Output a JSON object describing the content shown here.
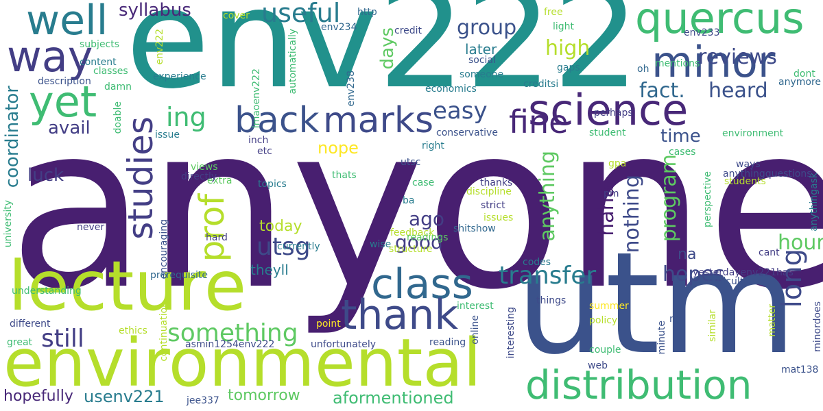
{
  "words": [
    {
      "text": "anyone",
      "color": "#481f70",
      "vertical": false
    },
    {
      "text": "env222",
      "color": "#21918c",
      "vertical": false
    },
    {
      "text": "utm",
      "color": "#3b528b",
      "vertical": false
    },
    {
      "text": "lecture",
      "color": "#b5de2b",
      "vertical": false
    },
    {
      "text": "environmental",
      "color": "#b5de2b",
      "vertical": false
    },
    {
      "text": "quercus",
      "color": "#3fbc73",
      "vertical": false
    },
    {
      "text": "minor",
      "color": "#3b528b",
      "vertical": false
    },
    {
      "text": "science",
      "color": "#482878",
      "vertical": false
    },
    {
      "text": "well",
      "color": "#287c8e",
      "vertical": false
    },
    {
      "text": "way",
      "color": "#433e85",
      "vertical": false
    },
    {
      "text": "yet",
      "color": "#3fbc73",
      "vertical": false
    },
    {
      "text": "back",
      "color": "#3b528b",
      "vertical": false
    },
    {
      "text": "marks",
      "color": "#3e4a89",
      "vertical": false
    },
    {
      "text": "class",
      "color": "#31688e",
      "vertical": false
    },
    {
      "text": "thank",
      "color": "#3e4a89",
      "vertical": false
    },
    {
      "text": "distribution",
      "color": "#3fbc73",
      "vertical": false
    },
    {
      "text": "fine",
      "color": "#482878",
      "vertical": false
    },
    {
      "text": "studies",
      "color": "#433e85",
      "vertical": true
    },
    {
      "text": "prof",
      "color": "#b5de2b",
      "vertical": true
    },
    {
      "text": "useful",
      "color": "#287c8e",
      "vertical": false
    },
    {
      "text": "syllabus",
      "color": "#482878",
      "vertical": false
    },
    {
      "text": "reviews",
      "color": "#3e4a89",
      "vertical": false
    },
    {
      "text": "group",
      "color": "#3b528b",
      "vertical": false
    },
    {
      "text": "high",
      "color": "#b5de2b",
      "vertical": false
    },
    {
      "text": "fact.",
      "color": "#31688e",
      "vertical": false
    },
    {
      "text": "heard",
      "color": "#3b528b",
      "vertical": false
    },
    {
      "text": "easy",
      "color": "#3b528b",
      "vertical": false
    },
    {
      "text": "ing",
      "color": "#3fbc73",
      "vertical": false
    },
    {
      "text": "transfer",
      "color": "#287c8e",
      "vertical": false
    },
    {
      "text": "utsg",
      "color": "#3e4a89",
      "vertical": false
    },
    {
      "text": "something",
      "color": "#5ec962",
      "vertical": false
    },
    {
      "text": "still",
      "color": "#433e85",
      "vertical": false
    },
    {
      "text": "long",
      "color": "#3e4a89",
      "vertical": true
    },
    {
      "text": "hopes",
      "color": "#3e4a89",
      "vertical": false
    },
    {
      "text": "hour",
      "color": "#5ec962",
      "vertical": false
    },
    {
      "text": "anything",
      "color": "#5ec962",
      "vertical": true
    },
    {
      "text": "haha",
      "color": "#481f70",
      "vertical": true
    },
    {
      "text": "nothing",
      "color": "#3e4a89",
      "vertical": true
    },
    {
      "text": "program",
      "color": "#5ec962",
      "vertical": true
    },
    {
      "text": "coordinator",
      "color": "#287c8e",
      "vertical": true
    },
    {
      "text": "avail",
      "color": "#433e85",
      "vertical": false
    },
    {
      "text": "luck",
      "color": "#433e85",
      "vertical": false
    },
    {
      "text": "time",
      "color": "#3b528b",
      "vertical": false
    },
    {
      "text": "good",
      "color": "#433e85",
      "vertical": false
    },
    {
      "text": "ago",
      "color": "#433e85",
      "vertical": false
    },
    {
      "text": "today",
      "color": "#b5de2b",
      "vertical": false
    },
    {
      "text": "nope",
      "color": "#fde725",
      "vertical": false
    },
    {
      "text": "days",
      "color": "#5ec962",
      "vertical": true
    },
    {
      "text": "later",
      "color": "#287c8e",
      "vertical": false
    },
    {
      "text": "tomorrow",
      "color": "#5ec962",
      "vertical": false
    },
    {
      "text": "aformentioned",
      "color": "#3fbc73",
      "vertical": false
    },
    {
      "text": "usenv221",
      "color": "#287c8e",
      "vertical": false
    },
    {
      "text": "hopefully",
      "color": "#482878",
      "vertical": false
    },
    {
      "text": "theyll",
      "color": "#287c8e",
      "vertical": false
    },
    {
      "text": "na",
      "color": "#3e4a89",
      "vertical": false
    },
    {
      "text": "yesterdayenv221has",
      "color": "#433e85",
      "vertical": false
    },
    {
      "text": "env234",
      "color": "#31688e",
      "vertical": false
    },
    {
      "text": "credit",
      "color": "#3e4a89",
      "vertical": false
    },
    {
      "text": "http",
      "color": "#31688e",
      "vertical": false
    },
    {
      "text": "cover",
      "color": "#b5de2b",
      "vertical": false
    },
    {
      "text": "free",
      "color": "#b5de2b",
      "vertical": false
    },
    {
      "text": "light",
      "color": "#3fbc73",
      "vertical": false
    },
    {
      "text": "env233",
      "color": "#3e4a89",
      "vertical": false
    },
    {
      "text": "mentions",
      "color": "#3fbc73",
      "vertical": false
    },
    {
      "text": "dont",
      "color": "#3fbc73",
      "vertical": false
    },
    {
      "text": "anymore",
      "color": "#31688e",
      "vertical": false
    },
    {
      "text": "oh",
      "color": "#31688e",
      "vertical": false
    },
    {
      "text": "subjects",
      "color": "#3fbc73",
      "vertical": false
    },
    {
      "text": "content",
      "color": "#287c8e",
      "vertical": false
    },
    {
      "text": "classes",
      "color": "#3fbc73",
      "vertical": false
    },
    {
      "text": "description",
      "color": "#3b528b",
      "vertical": false
    },
    {
      "text": "damn",
      "color": "#3fbc73",
      "vertical": false
    },
    {
      "text": "env222",
      "color": "#b5de2b",
      "vertical": true
    },
    {
      "text": "lmaoenv222",
      "color": "#3fbc73",
      "vertical": true
    },
    {
      "text": "automatically",
      "color": "#3fbc73",
      "vertical": true
    },
    {
      "text": "env238",
      "color": "#31688e",
      "vertical": true
    },
    {
      "text": "social",
      "color": "#3b528b",
      "vertical": false
    },
    {
      "text": "someone",
      "color": "#287c8e",
      "vertical": false
    },
    {
      "text": "economics",
      "color": "#287c8e",
      "vertical": false
    },
    {
      "text": "experience",
      "color": "#287c8e",
      "vertical": false
    },
    {
      "text": "gaps",
      "color": "#287c8e",
      "vertical": false
    },
    {
      "text": "creditsi",
      "color": "#287c8e",
      "vertical": false
    },
    {
      "text": "perhaps",
      "color": "#433e85",
      "vertical": false
    },
    {
      "text": "student",
      "color": "#3fbc73",
      "vertical": false
    },
    {
      "text": "environment",
      "color": "#3fbc73",
      "vertical": false
    },
    {
      "text": "doable",
      "color": "#3fbc73",
      "vertical": true
    },
    {
      "text": "issue",
      "color": "#287c8e",
      "vertical": false
    },
    {
      "text": "inch",
      "color": "#433e85",
      "vertical": false
    },
    {
      "text": "etc",
      "color": "#433e85",
      "vertical": false
    },
    {
      "text": "conservative",
      "color": "#3b528b",
      "vertical": false
    },
    {
      "text": "right",
      "color": "#287c8e",
      "vertical": false
    },
    {
      "text": "utsc",
      "color": "#3b528b",
      "vertical": false
    },
    {
      "text": "cases",
      "color": "#3fbc73",
      "vertical": false
    },
    {
      "text": "gpa",
      "color": "#b5de2b",
      "vertical": false
    },
    {
      "text": "ways",
      "color": "#3e4a89",
      "vertical": false
    },
    {
      "text": "anythingquestions",
      "color": "#3e4a89",
      "vertical": false
    },
    {
      "text": "students",
      "color": "#b5de2b",
      "vertical": false
    },
    {
      "text": "views",
      "color": "#5ec962",
      "vertical": false
    },
    {
      "text": "extra",
      "color": "#5ec962",
      "vertical": false
    },
    {
      "text": "directly",
      "color": "#433e85",
      "vertical": false
    },
    {
      "text": "thats",
      "color": "#3fbc73",
      "vertical": false
    },
    {
      "text": "topics",
      "color": "#287c8e",
      "vertical": false
    },
    {
      "text": "case",
      "color": "#3fbc73",
      "vertical": false
    },
    {
      "text": "thanks",
      "color": "#433e85",
      "vertical": false
    },
    {
      "text": "discipline",
      "color": "#b5de2b",
      "vertical": false
    },
    {
      "text": "pm",
      "color": "#433e85",
      "vertical": false
    },
    {
      "text": "strict",
      "color": "#433e85",
      "vertical": false
    },
    {
      "text": "issues",
      "color": "#b5de2b",
      "vertical": false
    },
    {
      "text": "shitshow",
      "color": "#31688e",
      "vertical": false
    },
    {
      "text": "ba",
      "color": "#287c8e",
      "vertical": false
    },
    {
      "text": "currently",
      "color": "#287c8e",
      "vertical": false
    },
    {
      "text": "feedback",
      "color": "#b5de2b",
      "vertical": false
    },
    {
      "text": "readings",
      "color": "#5ec962",
      "vertical": false
    },
    {
      "text": "wise",
      "color": "#287c8e",
      "vertical": false
    },
    {
      "text": "structure",
      "color": "#b5de2b",
      "vertical": false
    },
    {
      "text": "codes",
      "color": "#287c8e",
      "vertical": false
    },
    {
      "text": "perspective",
      "color": "#3fbc73",
      "vertical": true
    },
    {
      "text": "cant",
      "color": "#433e85",
      "vertical": false
    },
    {
      "text": "anythingask",
      "color": "#287c8e",
      "vertical": true
    },
    {
      "text": "university",
      "color": "#3fbc73",
      "vertical": true
    },
    {
      "text": "never",
      "color": "#433e85",
      "vertical": false
    },
    {
      "text": "hard",
      "color": "#433e85",
      "vertical": false
    },
    {
      "text": "encouraging",
      "color": "#3b528b",
      "vertical": true
    },
    {
      "text": "prerequisite",
      "color": "#31688e",
      "vertical": false
    },
    {
      "text": "understanding",
      "color": "#3fbc73",
      "vertical": false
    },
    {
      "text": "difficult",
      "color": "#3b528b",
      "vertical": false
    },
    {
      "text": "things",
      "color": "#3e4a89",
      "vertical": false
    },
    {
      "text": "interest",
      "color": "#3fbc73",
      "vertical": false
    },
    {
      "text": "summer",
      "color": "#fde725",
      "vertical": false
    },
    {
      "text": "policy",
      "color": "#b5de2b",
      "vertical": false
    },
    {
      "text": "np",
      "color": "#3b528b",
      "vertical": false
    },
    {
      "text": "minute",
      "color": "#3b528b",
      "vertical": true
    },
    {
      "text": "similar",
      "color": "#b5de2b",
      "vertical": true
    },
    {
      "text": "matter",
      "color": "#b5de2b",
      "vertical": true
    },
    {
      "text": "minordoes",
      "color": "#3e4a89",
      "vertical": true
    },
    {
      "text": "different",
      "color": "#3e4a89",
      "vertical": false
    },
    {
      "text": "great",
      "color": "#3fbc73",
      "vertical": false
    },
    {
      "text": "ethics",
      "color": "#b5de2b",
      "vertical": false
    },
    {
      "text": "continuation",
      "color": "#b5de2b",
      "vertical": true
    },
    {
      "text": "point",
      "color": "#fde725",
      "vertical": false
    },
    {
      "text": "online",
      "color": "#3b528b",
      "vertical": true
    },
    {
      "text": "interesting",
      "color": "#3e4a89",
      "vertical": true
    },
    {
      "text": "asmin1254env222",
      "color": "#3e4a89",
      "vertical": false
    },
    {
      "text": "unfortunately",
      "color": "#3e4a89",
      "vertical": false
    },
    {
      "text": "reading",
      "color": "#3b528b",
      "vertical": false
    },
    {
      "text": "couple",
      "color": "#3fbc73",
      "vertical": false
    },
    {
      "text": "web",
      "color": "#3e4a89",
      "vertical": false
    },
    {
      "text": "mat138",
      "color": "#3b528b",
      "vertical": false
    },
    {
      "text": "jee337",
      "color": "#3b528b",
      "vertical": false
    }
  ]
}
